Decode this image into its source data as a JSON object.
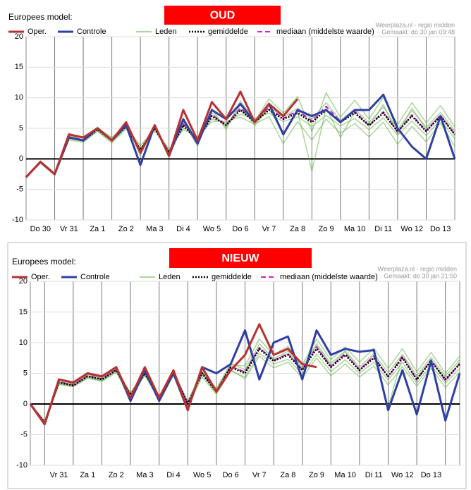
{
  "chart_data": [
    {
      "type": "line",
      "title": "OUD",
      "model_label": "Europees model:",
      "source": "Weerplaza.nl - regio midden",
      "made": "Gemaakt: do 30 jan 09:48",
      "x": [
        0,
        0.5,
        1,
        1.5,
        2,
        2.5,
        3,
        3.5,
        4,
        4.5,
        5,
        5.5,
        6,
        6.5,
        7,
        7.5,
        8,
        8.5,
        9,
        9.5,
        10,
        10.5,
        11,
        11.5,
        12,
        12.5,
        13,
        13.5,
        14,
        14.5,
        15
      ],
      "xlim": [
        0,
        15
      ],
      "xticks": [
        {
          "value": 0.5,
          "label": "Do 30"
        },
        {
          "value": 1.5,
          "label": "Vr 31"
        },
        {
          "value": 2.5,
          "label": "Za 1"
        },
        {
          "value": 3.5,
          "label": "Zo 2"
        },
        {
          "value": 4.5,
          "label": "Ma 3"
        },
        {
          "value": 5.5,
          "label": "Di 4"
        },
        {
          "value": 6.5,
          "label": "Wo 5"
        },
        {
          "value": 7.5,
          "label": "Do 6"
        },
        {
          "value": 8.5,
          "label": "Vr 7"
        },
        {
          "value": 9.5,
          "label": "Za 8"
        },
        {
          "value": 10.5,
          "label": "Zo 9"
        },
        {
          "value": 11.5,
          "label": "Ma 10"
        },
        {
          "value": 12.5,
          "label": "Di 11"
        },
        {
          "value": 13.5,
          "label": "Wo 12"
        },
        {
          "value": 14.5,
          "label": "Do 13"
        }
      ],
      "xgrid": [
        1,
        2,
        3,
        4,
        5,
        6,
        7,
        8,
        9,
        10,
        11,
        12,
        13,
        14
      ],
      "ylim": [
        -10,
        20
      ],
      "yticks": [
        -10,
        -5,
        0,
        5,
        10,
        15,
        20
      ],
      "grid": true,
      "series": [
        {
          "name": "Oper.",
          "color": "#b8312f",
          "style": "solid",
          "width": 3,
          "values": [
            -3,
            -0.5,
            -2.5,
            4,
            3.5,
            5,
            3,
            6,
            1,
            5.5,
            0.5,
            8,
            3,
            9.3,
            6.5,
            11,
            6,
            9,
            7,
            9.8,
            null,
            null,
            null,
            null,
            null,
            null,
            null,
            null,
            null,
            null,
            null
          ]
        },
        {
          "name": "Controle",
          "color": "#2e3fa3",
          "style": "solid",
          "width": 3,
          "values": [
            -3,
            -0.5,
            -2.5,
            3.5,
            3,
            5,
            3,
            5.5,
            -1,
            5.5,
            0.5,
            6.5,
            2.5,
            8,
            6.5,
            9,
            6,
            9,
            4,
            8,
            7,
            8,
            6,
            8,
            8,
            10.5,
            5,
            2,
            0,
            7,
            0
          ]
        },
        {
          "name": "Leden",
          "color": "#5aac3a",
          "style": "solid",
          "width": 1.5,
          "members": [
            [
              -3,
              -0.3,
              -2.3,
              4.2,
              3.4,
              5.2,
              3.3,
              5.8,
              1.2,
              5.4,
              0.8,
              6.2,
              2.8,
              7.6,
              5.2,
              8.8,
              5.4,
              8.6,
              6.8,
              8.3,
              6.5,
              9.2,
              6.3,
              8.1,
              5.9,
              8.5,
              4.8,
              7.9,
              5.2,
              7.6,
              4.6
            ],
            [
              -3,
              -0.7,
              -2.7,
              3.1,
              2.7,
              4.5,
              2.6,
              4.9,
              1.8,
              4.6,
              1.3,
              5.1,
              3.4,
              6.5,
              5.9,
              7.3,
              6.6,
              7.5,
              6.1,
              6.9,
              5.3,
              7.1,
              5.4,
              6.6,
              4.8,
              6.7,
              3.9,
              6.2,
              3.8,
              6.4,
              3.3
            ],
            [
              -3,
              -0.5,
              -2.4,
              3.8,
              3.1,
              5.0,
              3.5,
              5.6,
              0.5,
              5.6,
              0.2,
              6.0,
              2.1,
              8.2,
              4.8,
              9.5,
              6.2,
              9.8,
              7.5,
              10.2,
              4.5,
              10.8,
              6.8,
              9.6,
              6.5,
              10.1,
              5.6,
              9.2,
              5.9,
              8.7,
              5.2
            ],
            [
              -3,
              -0.4,
              -2.6,
              3.3,
              2.9,
              4.6,
              2.9,
              5.1,
              2.2,
              4.8,
              1.6,
              4.8,
              3.6,
              6.1,
              6.2,
              6.8,
              5.7,
              6.9,
              2.5,
              6.1,
              3.1,
              6.5,
              4.2,
              5.8,
              3.6,
              6.0,
              2.4,
              5.3,
              2.8,
              5.9,
              2.1
            ],
            [
              -3,
              -0.6,
              -2.5,
              3.6,
              3.2,
              4.9,
              3.1,
              5.4,
              1.4,
              5.2,
              1.1,
              5.7,
              3.0,
              7.2,
              5.5,
              8.1,
              5.9,
              8.2,
              4.2,
              7.8,
              -2.0,
              8.4,
              3.5,
              7.7,
              5.3,
              8.9,
              4.1,
              8.3,
              4.9,
              7.2,
              3.8
            ]
          ]
        },
        {
          "name": "gemiddelde",
          "color": "#000000",
          "style": "dotted",
          "width": 2.5,
          "values": [
            -3,
            -0.5,
            -2.5,
            3.5,
            3,
            4.8,
            3,
            5.3,
            1.5,
            5,
            1,
            5.5,
            3,
            7,
            5.5,
            8,
            6,
            8,
            6.5,
            7.5,
            6,
            8,
            6,
            7.5,
            5.5,
            7.5,
            4.5,
            7,
            4.5,
            7,
            4
          ]
        },
        {
          "name": "mediaan (middelste waarde)",
          "color": "#cc22cc",
          "style": "dashed",
          "width": 2,
          "values": [
            -3,
            -0.5,
            -2.5,
            3.6,
            3.1,
            4.9,
            3.1,
            5.4,
            1.4,
            5.1,
            1.1,
            5.7,
            3.1,
            7.2,
            5.6,
            8.3,
            6.1,
            8.4,
            6.6,
            7.9,
            6.2,
            8.6,
            6.1,
            7.8,
            5.4,
            7.7,
            4.4,
            7.2,
            4.6,
            7.1,
            4.1
          ]
        }
      ]
    },
    {
      "type": "line",
      "title": "NIEUW",
      "model_label": "Europees model:",
      "source": "Weerplaza.nl - regio midden",
      "made": "Gemaakt: do 30 jan 21:50",
      "x": [
        0.5,
        1,
        1.5,
        2,
        2.5,
        3,
        3.5,
        4,
        4.5,
        5,
        5.5,
        6,
        6.5,
        7,
        7.5,
        8,
        8.5,
        9,
        9.5,
        10,
        10.5,
        11,
        11.5,
        12,
        12.5,
        13,
        13.5,
        14,
        14.5,
        15,
        15.5
      ],
      "xlim": [
        0.5,
        15.5
      ],
      "xticks": [
        {
          "value": 1.5,
          "label": "Vr 31"
        },
        {
          "value": 2.5,
          "label": "Za 1"
        },
        {
          "value": 3.5,
          "label": "Zo 2"
        },
        {
          "value": 4.5,
          "label": "Ma 3"
        },
        {
          "value": 5.5,
          "label": "Di 4"
        },
        {
          "value": 6.5,
          "label": "Wo 5"
        },
        {
          "value": 7.5,
          "label": "Do 6"
        },
        {
          "value": 8.5,
          "label": "Vr 7"
        },
        {
          "value": 9.5,
          "label": "Za 8"
        },
        {
          "value": 10.5,
          "label": "Zo 9"
        },
        {
          "value": 11.5,
          "label": "Ma 10"
        },
        {
          "value": 12.5,
          "label": "Di 11"
        },
        {
          "value": 13.5,
          "label": "Wo 12"
        },
        {
          "value": 14.5,
          "label": "Do 13"
        }
      ],
      "xgrid": [
        1,
        2,
        3,
        4,
        5,
        6,
        7,
        8,
        9,
        10,
        11,
        12,
        13,
        14,
        15
      ],
      "ylim": [
        -10,
        20
      ],
      "yticks": [
        -10,
        -5,
        0,
        5,
        10,
        15,
        20
      ],
      "grid": true,
      "series": [
        {
          "name": "Oper.",
          "color": "#b8312f",
          "style": "solid",
          "width": 3,
          "values": [
            0,
            -3.3,
            4,
            3.5,
            5,
            4.5,
            6,
            1,
            6,
            1,
            5.5,
            -1,
            6,
            2,
            5.5,
            8,
            13,
            8,
            9,
            6.5,
            6,
            null,
            null,
            null,
            null,
            null,
            null,
            null,
            null,
            null,
            null
          ]
        },
        {
          "name": "Controle",
          "color": "#2e3fa3",
          "style": "solid",
          "width": 3,
          "values": [
            0,
            -3.3,
            4,
            3.5,
            5,
            4.5,
            6,
            0.5,
            5.5,
            0.5,
            5,
            -1,
            6,
            5,
            6.5,
            12,
            4,
            10,
            11,
            4,
            12,
            8,
            9,
            8.5,
            8.8,
            -1,
            5.5,
            -1.7,
            7,
            -2.7,
            5
          ]
        },
        {
          "name": "Leden",
          "color": "#5aac3a",
          "style": "solid",
          "width": 1.5,
          "members": [
            [
              0,
              -2.8,
              3.8,
              3.2,
              4.8,
              4.2,
              5.8,
              1.8,
              5.3,
              1.2,
              5.4,
              0.4,
              5.6,
              2.5,
              6.6,
              5.6,
              9.8,
              7.4,
              8.6,
              6.0,
              9.8,
              6.6,
              8.7,
              6.0,
              8.2,
              5.1,
              8.1,
              4.6,
              7.6,
              4.5,
              7.2
            ],
            [
              0,
              -3.1,
              3.2,
              2.8,
              4.2,
              3.7,
              5.1,
              1.2,
              4.6,
              0.7,
              4.7,
              -0.5,
              4.4,
              1.6,
              5.4,
              4.4,
              8.3,
              6.5,
              7.3,
              4.9,
              8.1,
              5.3,
              7.2,
              5.0,
              6.8,
              3.9,
              6.8,
              3.4,
              6.3,
              3.4,
              5.8
            ],
            [
              0,
              -2.9,
              3.6,
              3.1,
              4.6,
              4.1,
              5.6,
              1.7,
              5.2,
              1.3,
              5.3,
              0.2,
              5.3,
              2.3,
              6.4,
              6.2,
              10.6,
              8.0,
              9.4,
              6.4,
              10.6,
              7.2,
              9.3,
              6.8,
              9.1,
              5.8,
              9.0,
              5.2,
              8.4,
              5.0,
              7.8
            ],
            [
              0,
              -3.2,
              3.3,
              2.9,
              4.3,
              3.8,
              5.3,
              1.3,
              4.8,
              0.8,
              4.8,
              -0.3,
              4.8,
              1.8,
              5.6,
              4.1,
              7.8,
              5.9,
              6.8,
              4.3,
              7.5,
              4.6,
              6.5,
              4.4,
              6.2,
              3.1,
              6.1,
              2.9,
              5.8,
              2.7,
              5.2
            ],
            [
              0,
              -3.0,
              3.5,
              3.0,
              4.5,
              3.9,
              5.5,
              1.5,
              5.0,
              1.0,
              5.1,
              0.1,
              5.2,
              2.1,
              6.2,
              5.3,
              9.2,
              7.2,
              8.2,
              5.7,
              9.5,
              6.2,
              8.5,
              5.5,
              7.9,
              -0.5,
              7.7,
              4.2,
              7.2,
              3.8,
              6.8
            ]
          ]
        },
        {
          "name": "gemiddelde",
          "color": "#000000",
          "style": "dotted",
          "width": 2.5,
          "values": [
            0,
            -3,
            3.5,
            3,
            4.5,
            4,
            5.5,
            1.5,
            5,
            1,
            5,
            0,
            5,
            2,
            6,
            5,
            9,
            7,
            8,
            5.5,
            9,
            6,
            8,
            5.5,
            7.5,
            4.5,
            7.5,
            4,
            7,
            4,
            6.5
          ]
        },
        {
          "name": "mediaan (middelste waarde)",
          "color": "#cc22cc",
          "style": "dashed",
          "width": 2,
          "values": [
            0,
            -3,
            3.6,
            3.1,
            4.6,
            4.1,
            5.6,
            1.4,
            5.1,
            1.1,
            5.2,
            0.1,
            5.1,
            2.1,
            6.1,
            5.2,
            9.2,
            7.1,
            8.2,
            5.6,
            9.3,
            6.1,
            8.2,
            5.6,
            7.8,
            4.4,
            7.8,
            3.9,
            7.2,
            3.8,
            6.6
          ]
        }
      ]
    }
  ]
}
